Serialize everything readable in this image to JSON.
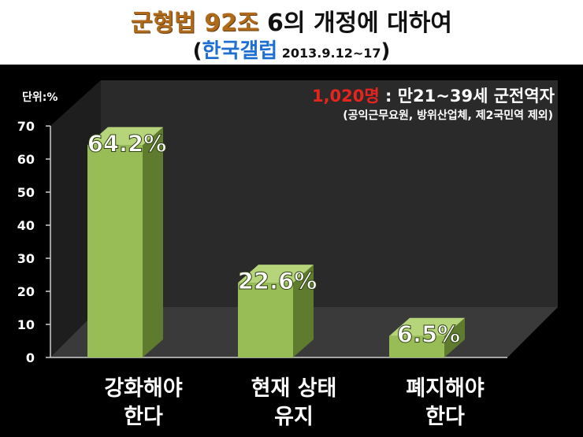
{
  "header": {
    "title_accent": "군형법 92조",
    "title_rest": " 6의 개정에 대하여",
    "source_open": "(",
    "source_name": "한국갤럽",
    "source_period": " 2013.9.12~17",
    "source_close": ")"
  },
  "note": {
    "sample": "1,020명",
    "description": " : 만21~39세 군전역자",
    "exclusion": "(공익근무요원, 방위산업체, 제2국민역 제외)"
  },
  "colors": {
    "bar_front": "#98bd56",
    "bar_side": "#5f7b2e",
    "bar_top": "#b6d47a",
    "background": "#000000",
    "wall": "#2a2a2a",
    "floor": "#3a3a3a",
    "accent_title": "#b06a1c",
    "accent_source": "#1f6fd1",
    "accent_sample": "#e8241e"
  },
  "chart_data": {
    "type": "bar",
    "categories": [
      [
        "강화해야",
        "한다"
      ],
      [
        "현재 상태",
        "유지"
      ],
      [
        "폐지해야",
        "한다"
      ]
    ],
    "values": [
      64.2,
      22.6,
      6.5
    ],
    "value_labels": [
      "64.2%",
      "22.6%",
      "6.5%"
    ],
    "unit_label": "단위:%",
    "ylim": [
      0,
      70
    ],
    "yticks": [
      0,
      10,
      20,
      30,
      40,
      50,
      60,
      70
    ],
    "grid": false,
    "style": "3d"
  }
}
